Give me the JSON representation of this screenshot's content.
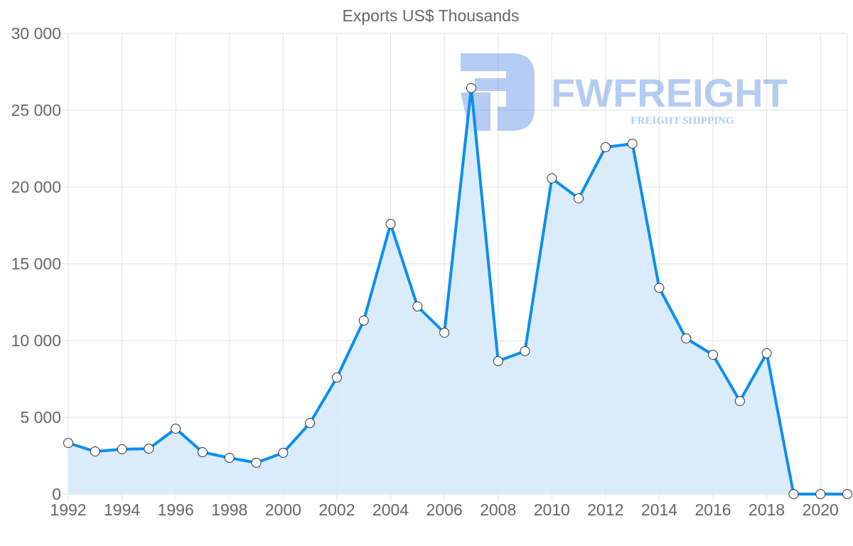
{
  "chart_data": {
    "type": "area",
    "title": "Exports US$ Thousands",
    "xlabel": "",
    "ylabel": "",
    "x": [
      1992,
      1993,
      1994,
      1995,
      1996,
      1997,
      1998,
      1999,
      2000,
      2001,
      2002,
      2003,
      2004,
      2005,
      2006,
      2007,
      2008,
      2009,
      2010,
      2011,
      2012,
      2013,
      2014,
      2015,
      2016,
      2017,
      2018,
      2019,
      2020,
      2021
    ],
    "series": [
      {
        "name": "Exports US$ Thousands",
        "values": [
          3330,
          2780,
          2920,
          2960,
          4260,
          2730,
          2360,
          2040,
          2690,
          4630,
          7590,
          11300,
          17590,
          12220,
          10510,
          26440,
          8660,
          9310,
          20560,
          19260,
          22590,
          22820,
          13430,
          10140,
          9070,
          6060,
          9170,
          0,
          0,
          0
        ],
        "color": "#0a8ff0",
        "fill": "#d6eafc"
      }
    ],
    "ylim": [
      0,
      30000
    ],
    "yticks": [
      0,
      5000,
      10000,
      15000,
      20000,
      25000,
      30000
    ],
    "ytick_labels": [
      "0",
      "5 000",
      "10 000",
      "15 000",
      "20 000",
      "25 000",
      "30 000"
    ],
    "xticks": [
      1992,
      1994,
      1996,
      1998,
      2000,
      2002,
      2004,
      2006,
      2008,
      2010,
      2012,
      2014,
      2016,
      2018,
      2020
    ],
    "xtick_labels": [
      "1992",
      "1994",
      "1996",
      "1998",
      "2000",
      "2002",
      "2004",
      "2006",
      "2008",
      "2010",
      "2012",
      "2014",
      "2016",
      "2018",
      "2020"
    ],
    "grid": true,
    "legend": "none"
  },
  "watermark": {
    "brand": "FWFREIGHT",
    "tagline": "FREIGHT SHIPPING",
    "color": "#5b8fe8"
  }
}
